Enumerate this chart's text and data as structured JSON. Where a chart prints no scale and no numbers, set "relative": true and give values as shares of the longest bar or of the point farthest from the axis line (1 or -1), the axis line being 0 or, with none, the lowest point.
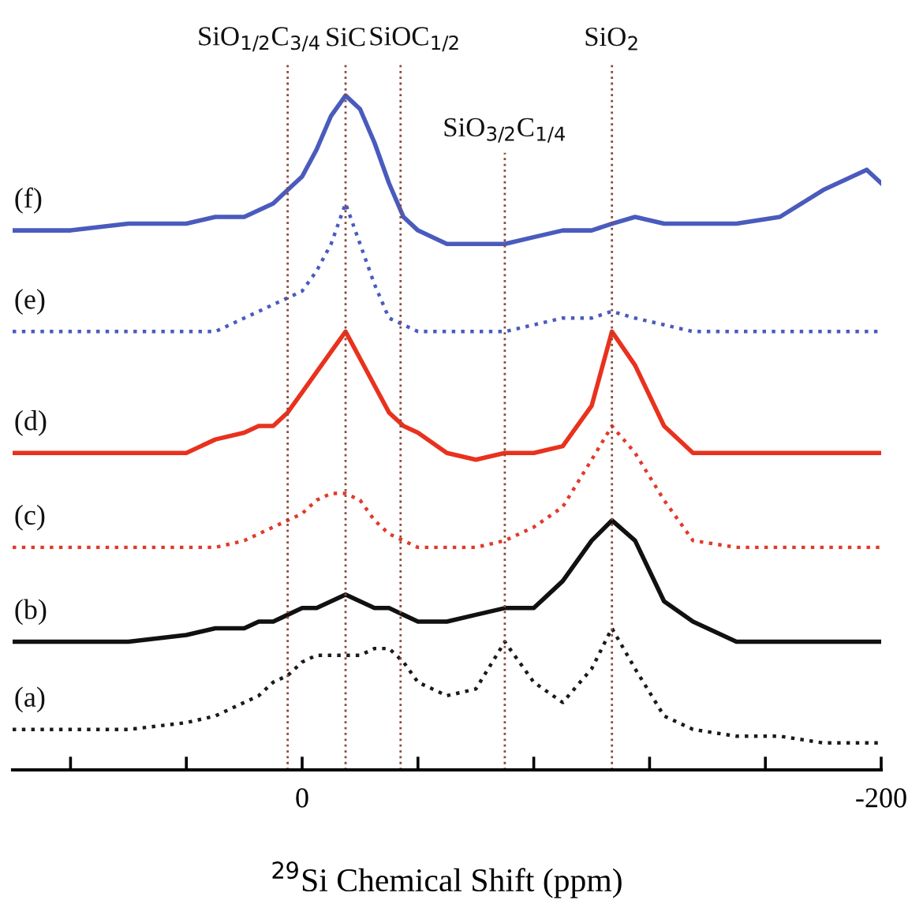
{
  "chart_data": {
    "type": "line",
    "relative": true,
    "xlabel": "$^{29}$Si Chemical Shift (ppm)",
    "x": [
      100,
      80,
      60,
      40,
      30,
      20,
      15,
      10,
      5,
      0,
      -5,
      -10,
      -15,
      -20,
      -25,
      -30,
      -35,
      -40,
      -50,
      -60,
      -70,
      -80,
      -90,
      -100,
      -107,
      -115,
      -125,
      -135,
      -150,
      -165,
      -180,
      -195,
      -200
    ],
    "xlim": [
      100,
      -200
    ],
    "xticks": [
      {
        "value": 80,
        "label": null
      },
      {
        "value": 40,
        "label": null
      },
      0,
      {
        "value": -40,
        "label": null
      },
      {
        "value": -80,
        "label": null
      },
      {
        "value": -120,
        "label": null
      },
      {
        "value": -160,
        "label": null
      },
      -200
    ],
    "tick_labels": "x",
    "grid": false,
    "legend": false,
    "series": [
      {
        "name": "(a)",
        "color": "#1a1a1a",
        "line_style": "dotted",
        "values": [
          0.06,
          0.06,
          0.06,
          0.07,
          0.08,
          0.1,
          0.11,
          0.13,
          0.14,
          0.16,
          0.17,
          0.17,
          0.17,
          0.17,
          0.18,
          0.18,
          0.16,
          0.13,
          0.11,
          0.12,
          0.19,
          0.13,
          0.1,
          0.15,
          0.21,
          0.15,
          0.08,
          0.06,
          0.05,
          0.05,
          0.04,
          0.04,
          0.04
        ]
      },
      {
        "name": "(b)",
        "color": "#111111",
        "line_style": "solid",
        "values": [
          0.19,
          0.19,
          0.19,
          0.2,
          0.21,
          0.21,
          0.22,
          0.22,
          0.23,
          0.24,
          0.24,
          0.25,
          0.26,
          0.25,
          0.24,
          0.24,
          0.23,
          0.22,
          0.22,
          0.23,
          0.24,
          0.24,
          0.28,
          0.34,
          0.37,
          0.34,
          0.25,
          0.22,
          0.19,
          0.19,
          0.19,
          0.19,
          0.19
        ]
      },
      {
        "name": "(c)",
        "color": "#e23a2a",
        "line_style": "dotted",
        "values": [
          0.33,
          0.33,
          0.33,
          0.33,
          0.33,
          0.34,
          0.35,
          0.36,
          0.37,
          0.38,
          0.4,
          0.41,
          0.41,
          0.4,
          0.37,
          0.35,
          0.34,
          0.33,
          0.33,
          0.33,
          0.34,
          0.36,
          0.39,
          0.46,
          0.51,
          0.47,
          0.4,
          0.34,
          0.33,
          0.33,
          0.33,
          0.33,
          0.33
        ]
      },
      {
        "name": "(d)",
        "color": "#e8321e",
        "line_style": "solid",
        "values": [
          0.47,
          0.47,
          0.47,
          0.47,
          0.49,
          0.5,
          0.51,
          0.51,
          0.53,
          0.56,
          0.59,
          0.62,
          0.65,
          0.61,
          0.57,
          0.53,
          0.51,
          0.5,
          0.47,
          0.46,
          0.47,
          0.47,
          0.48,
          0.54,
          0.65,
          0.6,
          0.51,
          0.47,
          0.47,
          0.47,
          0.47,
          0.47,
          0.47
        ]
      },
      {
        "name": "(e)",
        "color": "#4a5bbd",
        "line_style": "dotted",
        "values": [
          0.65,
          0.65,
          0.65,
          0.65,
          0.65,
          0.67,
          0.68,
          0.69,
          0.7,
          0.71,
          0.74,
          0.78,
          0.84,
          0.78,
          0.72,
          0.67,
          0.66,
          0.65,
          0.65,
          0.65,
          0.65,
          0.66,
          0.67,
          0.67,
          0.68,
          0.67,
          0.66,
          0.65,
          0.65,
          0.65,
          0.65,
          0.65,
          0.65
        ]
      },
      {
        "name": "(f)",
        "color": "#4a5bbd",
        "line_style": "solid",
        "values": [
          0.8,
          0.8,
          0.81,
          0.81,
          0.82,
          0.82,
          0.83,
          0.84,
          0.86,
          0.88,
          0.92,
          0.97,
          1.0,
          0.98,
          0.93,
          0.87,
          0.82,
          0.8,
          0.78,
          0.78,
          0.78,
          0.79,
          0.8,
          0.8,
          0.81,
          0.82,
          0.81,
          0.81,
          0.81,
          0.82,
          0.86,
          0.89,
          0.87
        ]
      }
    ],
    "ref_lines": [
      {
        "axis": "x",
        "value": 5,
        "label": "SiO$_{1/2}$C$_{3/4}$",
        "color": "#8b4a3a",
        "line_style": "dotted"
      },
      {
        "axis": "x",
        "value": -15,
        "label": "SiC",
        "color": "#8b4a3a",
        "line_style": "dotted"
      },
      {
        "axis": "x",
        "value": -34,
        "label": "SiOC$_{1/2}$",
        "color": "#8b4a3a",
        "line_style": "dotted"
      },
      {
        "axis": "x",
        "value": -70,
        "label": "SiO$_{3/2}$C$_{1/4}$",
        "color": "#8b4a3a",
        "line_style": "dotted"
      },
      {
        "axis": "x",
        "value": -107,
        "label": "SiO$_{2}$",
        "color": "#8b4a3a",
        "line_style": "dotted"
      }
    ]
  }
}
